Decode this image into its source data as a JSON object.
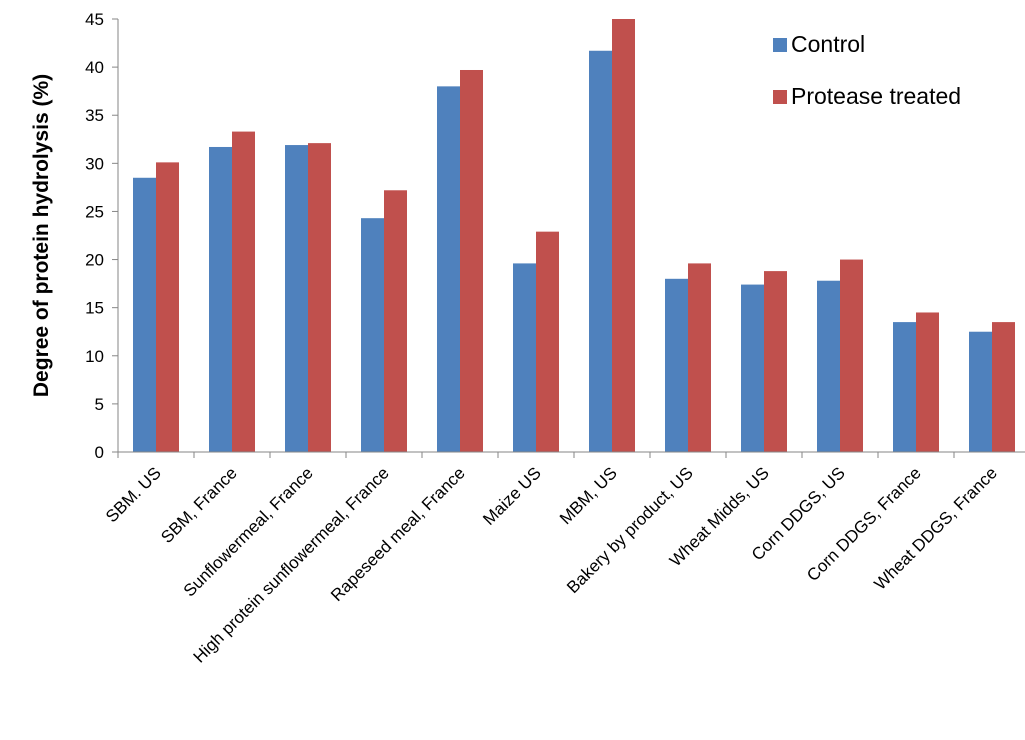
{
  "chart_data": {
    "type": "bar",
    "title": "",
    "xlabel": "",
    "ylabel": "Degree of protein hydrolysis (%)",
    "ylim": [
      0,
      45
    ],
    "yticks": [
      "0",
      "5",
      "10",
      "15",
      "20",
      "25",
      "30",
      "35",
      "40",
      "45"
    ],
    "grid": false,
    "legend_position": "top-right",
    "categories": [
      "SBM. US",
      "SBM, France",
      "Sunflowermeal, France",
      "High protein sunflowermeal, France",
      "Rapeseed meal, France",
      "Maize US",
      "MBM, US",
      "Bakery by product, US",
      "Wheat Midds, US",
      "Corn DDGS, US",
      "Corn DDGS, France",
      "Wheat DDGS, France"
    ],
    "series": [
      {
        "name": "Control",
        "color": "#4f81bd",
        "values": [
          28.5,
          31.7,
          31.9,
          24.3,
          38.0,
          19.6,
          41.7,
          18.0,
          17.4,
          17.8,
          13.5,
          12.5
        ]
      },
      {
        "name": "Protease treated",
        "color": "#c0504d",
        "values": [
          30.1,
          33.3,
          32.1,
          27.2,
          39.7,
          22.9,
          45.0,
          19.6,
          18.8,
          20.0,
          14.5,
          13.5
        ]
      }
    ]
  }
}
